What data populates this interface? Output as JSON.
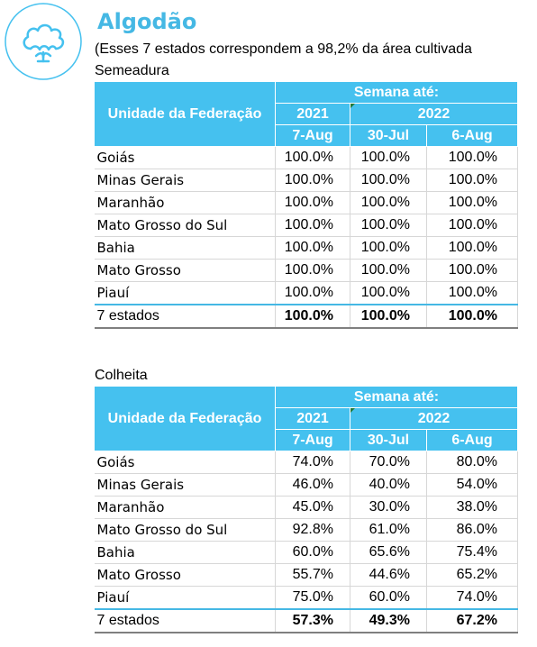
{
  "header": {
    "title": "Algodão",
    "subtitle": "(Esses 7 estados correspondem a 98,2% da área cultivada"
  },
  "colors": {
    "accent": "#45c1ef",
    "title": "#45b8e4",
    "logo_stroke": "#45c1ef"
  },
  "logo_icon": "cotton-boll-icon",
  "sections": [
    {
      "label": "Semeadura",
      "header": {
        "unit_col": "Unidade da Federação",
        "week_label": "Semana até:",
        "year_a": "2021",
        "year_b": "2022",
        "dates": [
          "7-Aug",
          "30-Jul",
          "6-Aug"
        ]
      },
      "rows": [
        {
          "name": "Goiás",
          "values": [
            "100.0%",
            "100.0%",
            "100.0%"
          ]
        },
        {
          "name": "Minas Gerais",
          "values": [
            "100.0%",
            "100.0%",
            "100.0%"
          ]
        },
        {
          "name": "Maranhão",
          "values": [
            "100.0%",
            "100.0%",
            "100.0%"
          ]
        },
        {
          "name": "Mato Grosso do Sul",
          "values": [
            "100.0%",
            "100.0%",
            "100.0%"
          ]
        },
        {
          "name": "Bahia",
          "values": [
            "100.0%",
            "100.0%",
            "100.0%"
          ]
        },
        {
          "name": "Mato Grosso",
          "values": [
            "100.0%",
            "100.0%",
            "100.0%"
          ]
        },
        {
          "name": "Piauí",
          "values": [
            "100.0%",
            "100.0%",
            "100.0%"
          ]
        }
      ],
      "total": {
        "name": "7 estados",
        "values": [
          "100.0%",
          "100.0%",
          "100.0%"
        ]
      }
    },
    {
      "label": "Colheita",
      "header": {
        "unit_col": "Unidade da Federação",
        "week_label": "Semana até:",
        "year_a": "2021",
        "year_b": "2022",
        "dates": [
          "7-Aug",
          "30-Jul",
          "6-Aug"
        ]
      },
      "rows": [
        {
          "name": "Goiás",
          "values": [
            "74.0%",
            "70.0%",
            "80.0%"
          ]
        },
        {
          "name": "Minas Gerais",
          "values": [
            "46.0%",
            "40.0%",
            "54.0%"
          ]
        },
        {
          "name": "Maranhão",
          "values": [
            "45.0%",
            "30.0%",
            "38.0%"
          ]
        },
        {
          "name": "Mato Grosso do Sul",
          "values": [
            "92.8%",
            "61.0%",
            "86.0%"
          ]
        },
        {
          "name": "Bahia",
          "values": [
            "60.0%",
            "65.6%",
            "75.4%"
          ]
        },
        {
          "name": "Mato Grosso",
          "values": [
            "55.7%",
            "44.6%",
            "65.2%"
          ]
        },
        {
          "name": "Piauí",
          "values": [
            "75.0%",
            "60.0%",
            "74.0%"
          ]
        }
      ],
      "total": {
        "name": "7 estados",
        "values": [
          "57.3%",
          "49.3%",
          "67.2%"
        ]
      }
    }
  ]
}
